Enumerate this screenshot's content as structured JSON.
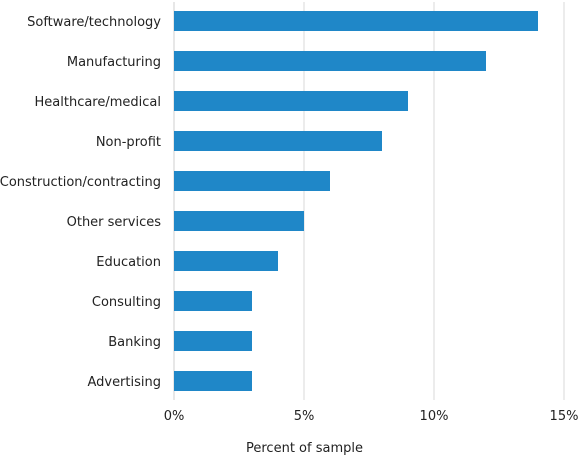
{
  "chart_data": {
    "type": "bar",
    "orientation": "horizontal",
    "title": "",
    "xlabel": "Percent of sample",
    "ylabel": "",
    "categories": [
      "Software/technology",
      "Manufacturing",
      "Healthcare/medical",
      "Non-profit",
      "Construction/contracting",
      "Other services",
      "Education",
      "Consulting",
      "Banking",
      "Advertising"
    ],
    "values": [
      14,
      12,
      9,
      8,
      6,
      5,
      4,
      3,
      3,
      3
    ],
    "xlim": [
      0,
      15
    ],
    "xticks": [
      0,
      5,
      10,
      15
    ],
    "xtick_labels": [
      "0%",
      "5%",
      "10%",
      "15%"
    ],
    "grid": true,
    "legend": "none",
    "colors": {
      "bar": "#1f87c8"
    }
  }
}
